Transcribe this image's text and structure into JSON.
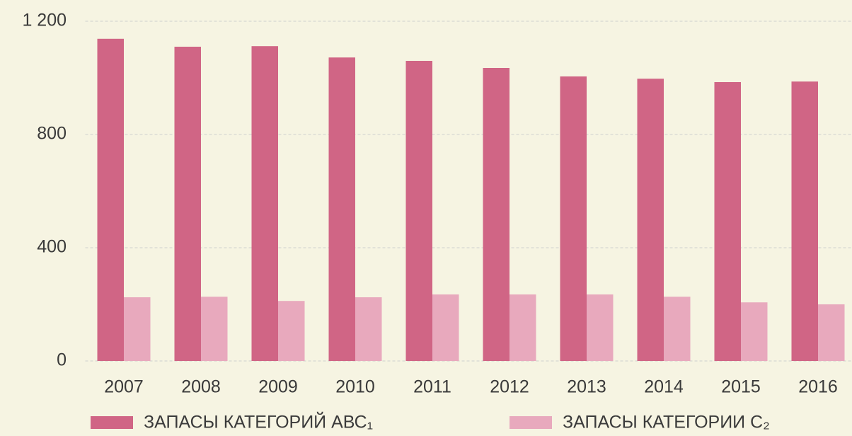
{
  "chart_data": {
    "type": "bar",
    "categories": [
      "2007",
      "2008",
      "2009",
      "2010",
      "2011",
      "2012",
      "2013",
      "2014",
      "2015",
      "2016"
    ],
    "series": [
      {
        "name": "ЗАПАСЫ КАТЕГОРИЙ АВС₁",
        "color": "#d06585",
        "values": [
          1138,
          1110,
          1112,
          1072,
          1060,
          1035,
          1005,
          997,
          985,
          987
        ]
      },
      {
        "name": "ЗАПАСЫ КАТЕГОРИИ С₂",
        "color": "#e8a9bd",
        "values": [
          225,
          227,
          212,
          225,
          235,
          235,
          235,
          227,
          207,
          200
        ]
      }
    ],
    "ylim": [
      0,
      1200
    ],
    "yticks": [
      0,
      400,
      800,
      {
        "value": 1200,
        "label": "1 200"
      }
    ],
    "grid": true,
    "legend": "bottom"
  }
}
